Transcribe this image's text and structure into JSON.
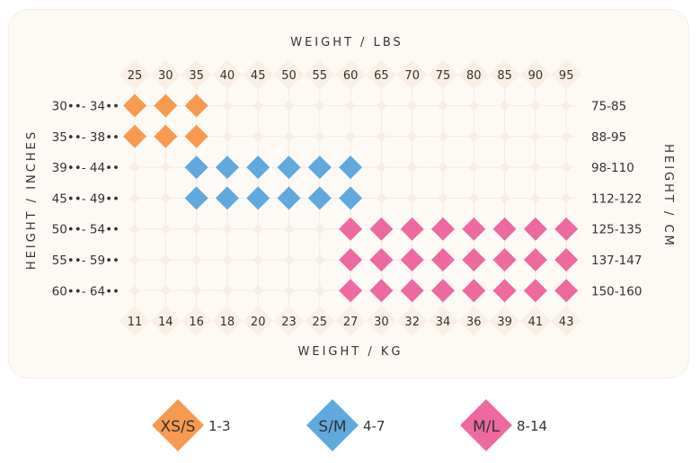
{
  "chart_data": {
    "type": "heatmap",
    "xlabel_top": "WEIGHT / LBS",
    "xlabel_bottom": "WEIGHT / KG",
    "ylabel_left": "HEIGHT / INCHES",
    "ylabel_right": "HEIGHT / CM",
    "x_lbs": [
      "25",
      "30",
      "35",
      "40",
      "45",
      "50",
      "55",
      "60",
      "65",
      "70",
      "75",
      "80",
      "85",
      "90",
      "95"
    ],
    "x_kg": [
      "11",
      "14",
      "16",
      "18",
      "20",
      "23",
      "25",
      "27",
      "30",
      "32",
      "34",
      "36",
      "39",
      "41",
      "43"
    ],
    "y_inches": [
      "30••- 34••",
      "35••- 38••",
      "39••- 44••",
      "45••- 49••",
      "50••- 54••",
      "55••- 59••",
      "60••- 64••"
    ],
    "y_cm": [
      "75-85",
      "88-95",
      "98-110",
      "112-122",
      "125-135",
      "137-147",
      "150-160"
    ],
    "sizes": [
      {
        "code": "XS/S",
        "range": "1-3",
        "color": "#f79a4f"
      },
      {
        "code": "S/M",
        "range": "4-7",
        "color": "#60a9de"
      },
      {
        "code": "M/L",
        "range": "8-14",
        "color": "#ee69a0"
      }
    ],
    "cells": [
      {
        "row": 0,
        "cols": [
          0,
          1,
          2
        ],
        "size": 0
      },
      {
        "row": 1,
        "cols": [
          0,
          1,
          2
        ],
        "size": 0
      },
      {
        "row": 2,
        "cols": [
          2,
          3,
          4,
          5,
          6,
          7
        ],
        "size": 1
      },
      {
        "row": 3,
        "cols": [
          2,
          3,
          4,
          5,
          6,
          7
        ],
        "size": 1
      },
      {
        "row": 4,
        "cols": [
          7,
          8,
          9,
          10,
          11,
          12,
          13,
          14
        ],
        "size": 2
      },
      {
        "row": 5,
        "cols": [
          7,
          8,
          9,
          10,
          11,
          12,
          13,
          14
        ],
        "size": 2
      },
      {
        "row": 6,
        "cols": [
          7,
          8,
          9,
          10,
          11,
          12,
          13,
          14
        ],
        "size": 2
      }
    ],
    "empty_color": "#f8ede3"
  }
}
